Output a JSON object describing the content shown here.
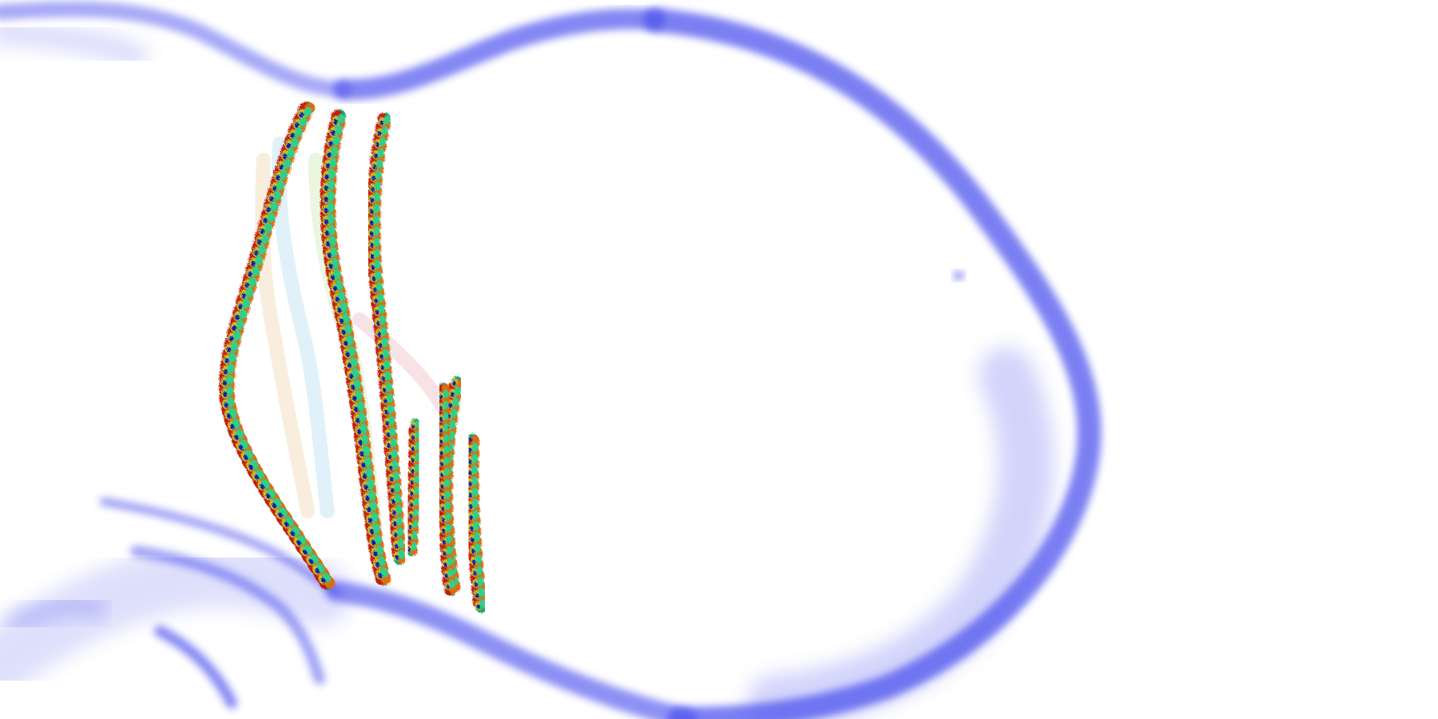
{
  "scene": {
    "background": "#ffffff",
    "membrane_color": "#5055ee",
    "filament_palette": [
      "#0a1ea8",
      "#1fa66a",
      "#2fd08a",
      "#c8c22a",
      "#e06a10",
      "#c41a08"
    ],
    "faint_filament_palette": [
      "#a8d8f0",
      "#c8e8a8",
      "#f0d0a0",
      "#e8b0b8"
    ],
    "filament_count_visible": 7
  }
}
